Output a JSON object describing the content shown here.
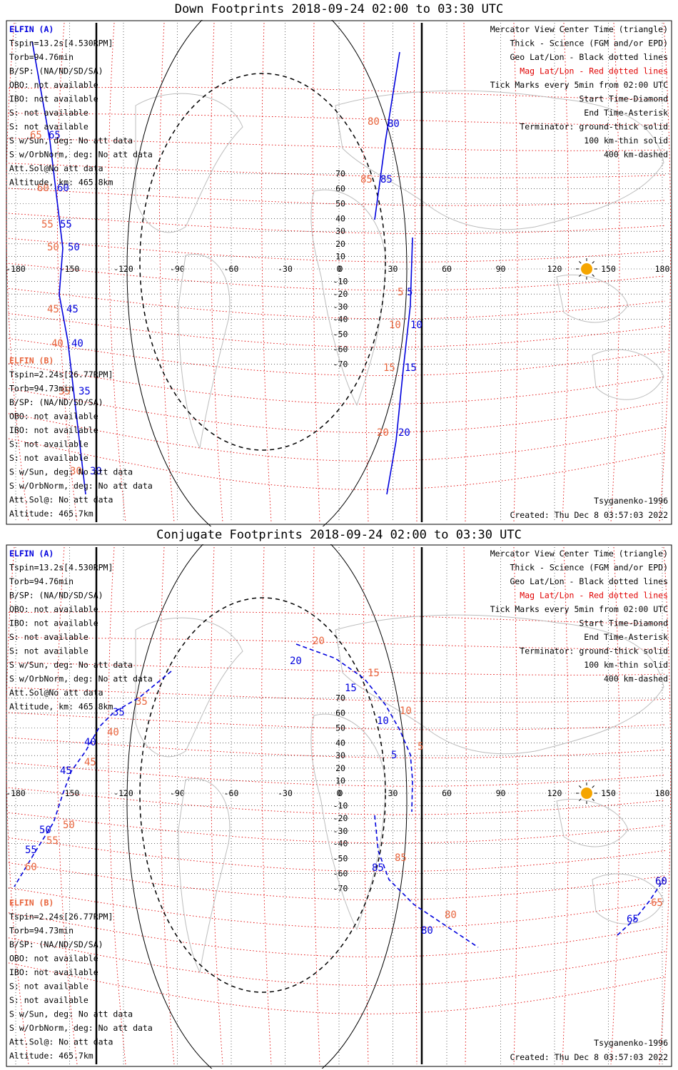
{
  "panels": [
    {
      "title": "Down Footprints 2018-09-24 02:00 to 03:30 UTC",
      "left_info_a": [
        "ELFIN (A)",
        "Tspin=13.2s[4.530RPM]",
        "Torb=94.76min",
        "B/SP: (NA/ND/SD/SA)",
        "OBO: not available",
        "IBO: not available",
        "S: not available",
        "S: not available",
        "S w/Sun, deg: No att data",
        "S w/OrbNorm, deg: No att data",
        "Att.Sol@No att data",
        "Altitude, km: 465.8km"
      ],
      "left_info_b": [
        "ELFIN (B)",
        "Tspin=2.24s[26.77RPM]",
        "Torb=94.73min",
        "B/SP: (NA/ND/SD/SA)",
        "OBO: not available",
        "IBO: not available",
        "S: not available",
        "S: not available",
        "S w/Sun, deg: No att data",
        "S w/OrbNorm, deg: No att data",
        "Att.Sol@: No att data",
        "Altitude: 465.7km"
      ],
      "right_info": [
        "Mercator View Center Time (triangle)",
        "Thick - Science (FGM and/or EPD)",
        "Geo Lat/Lon - Black dotted lines",
        "Mag Lat/Lon - Red dotted lines",
        "Tick Marks every 5min from 02:00 UTC",
        "Start Time-Diamond",
        "End Time-Asterisk",
        "Terminator: ground-thick solid",
        "100 km-thin solid",
        "400 km-dashed"
      ],
      "model": "Tsyganenko-1996",
      "created": "Created: Thu Dec  8 03:57:03 2022",
      "lon_ticks": [
        "-180",
        "-150",
        "-120",
        "-90",
        "-60",
        "-30",
        "0",
        "30",
        "60",
        "90",
        "120",
        "150",
        "180"
      ],
      "lat_ticks": [
        "70",
        "60",
        "50",
        "40",
        "30",
        "20",
        "10",
        "0",
        "-10",
        "-20",
        "-30",
        "-40",
        "-50",
        "-60",
        "-70"
      ],
      "track_labels": [
        {
          "red": "65",
          "blue": "65"
        },
        {
          "red": "60",
          "blue": "60"
        },
        {
          "red": "55",
          "blue": "55"
        },
        {
          "red": "50",
          "blue": "50"
        },
        {
          "red": "45",
          "blue": "45"
        },
        {
          "red": "40",
          "blue": "40"
        },
        {
          "red": "35",
          "blue": "35"
        },
        {
          "red": "30",
          "blue": "30"
        },
        {
          "red": "80",
          "blue": "80"
        },
        {
          "red": "85",
          "blue": "85"
        },
        {
          "red": "5",
          "blue": "5"
        },
        {
          "red": "10",
          "blue": "10"
        },
        {
          "red": "15",
          "blue": "15"
        },
        {
          "red": "20",
          "blue": "20"
        }
      ]
    },
    {
      "title": "Conjugate Footprints 2018-09-24 02:00 to 03:30 UTC",
      "left_info_a": [
        "ELFIN (A)",
        "Tspin=13.2s[4.530RPM]",
        "Torb=94.76min",
        "B/SP: (NA/ND/SD/SA)",
        "OBO: not available",
        "IBO: not available",
        "S: not available",
        "S: not available",
        "S w/Sun, deg: No att data",
        "S w/OrbNorm, deg: No att data",
        "Att.Sol@No att data",
        "Altitude, km: 465.8km"
      ],
      "left_info_b": [
        "ELFIN (B)",
        "Tspin=2.24s[26.77RPM]",
        "Torb=94.73min",
        "B/SP: (NA/ND/SD/SA)",
        "OBO: not available",
        "IBO: not available",
        "S: not available",
        "S: not available",
        "S w/Sun, deg: No att data",
        "S w/OrbNorm, deg: No att data",
        "Att.Sol@: No att data",
        "Altitude: 465.7km"
      ],
      "right_info": [
        "Mercator View Center Time (triangle)",
        "Thick - Science (FGM and/or EPD)",
        "Geo Lat/Lon - Black dotted lines",
        "Mag Lat/Lon - Red dotted lines",
        "Tick Marks every 5min from 02:00 UTC",
        "Start Time-Diamond",
        "End Time-Asterisk",
        "Terminator: ground-thick solid",
        "100 km-thin solid",
        "400 km-dashed"
      ],
      "model": "Tsyganenko-1996",
      "created": "Created: Thu Dec  8 03:57:03 2022",
      "lon_ticks": [
        "-180",
        "-150",
        "-120",
        "-90",
        "-60",
        "-30",
        "0",
        "30",
        "60",
        "90",
        "120",
        "150",
        "180"
      ],
      "lat_ticks": [
        "70",
        "60",
        "50",
        "40",
        "30",
        "20",
        "10",
        "0",
        "-10",
        "-20",
        "-30",
        "-40",
        "-50",
        "-60",
        "-70"
      ],
      "track_labels": [
        {
          "red": "20",
          "blue": "20"
        },
        {
          "red": "15",
          "blue": "15"
        },
        {
          "red": "10",
          "blue": "10"
        },
        {
          "red": "5",
          "blue": "5"
        },
        {
          "red": "85",
          "blue": "85"
        },
        {
          "red": "80",
          "blue": "80"
        },
        {
          "red": "35",
          "blue": "35"
        },
        {
          "red": "40",
          "blue": "40"
        },
        {
          "red": "45",
          "blue": "45"
        },
        {
          "red": "50",
          "blue": "50"
        },
        {
          "red": "55",
          "blue": "55"
        },
        {
          "red": "60",
          "blue": "60"
        },
        {
          "red": "65",
          "blue": "65"
        },
        {
          "red": "60",
          "blue": "60"
        }
      ]
    }
  ],
  "colors": {
    "track": "#0000dd",
    "tick_label": "#e8643c",
    "mag_grid": "#e00000",
    "geo_grid": "#000000",
    "land": "#bdbdbd",
    "sun": "#f5a500",
    "ellfin_b_label": "#e8643c",
    "elfin_a_label": "#0000dd",
    "mag_legend": "#e00000"
  }
}
